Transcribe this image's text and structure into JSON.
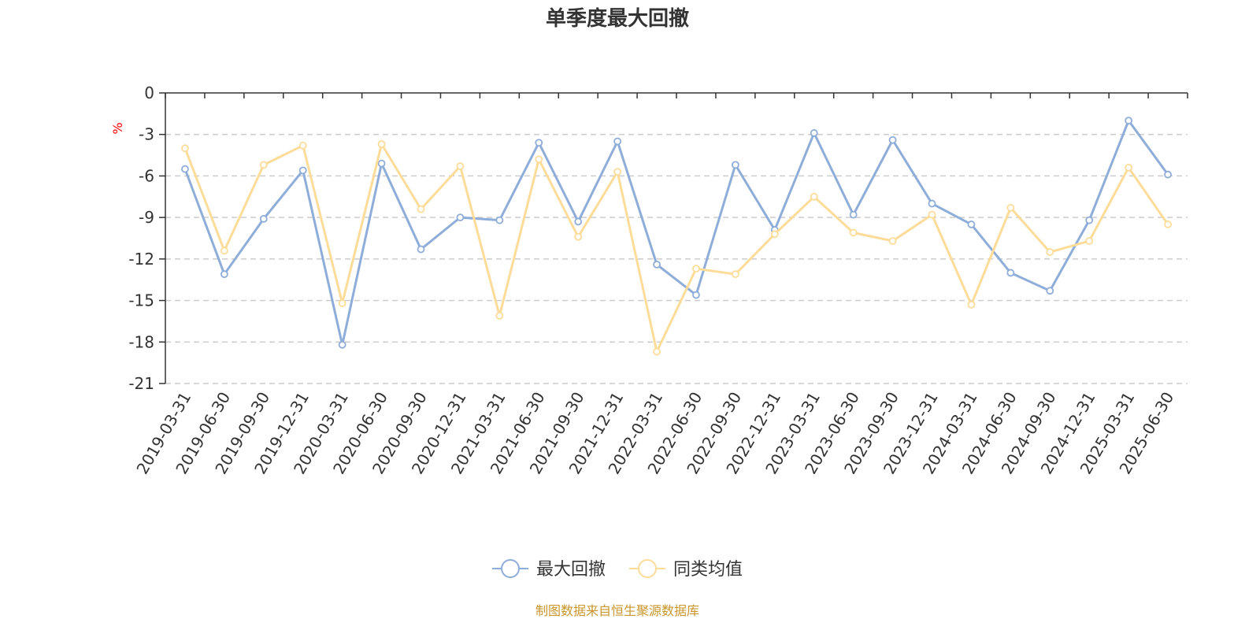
{
  "chart_data": {
    "type": "line",
    "title": "单季度最大回撤",
    "ylabel": "%",
    "ylim": [
      -21,
      0
    ],
    "yticks": [
      0,
      -3,
      -6,
      -9,
      -12,
      -15,
      -18,
      -21
    ],
    "grid": true,
    "legend_position": "bottom",
    "x": [
      "2019-03-31",
      "2019-06-30",
      "2019-09-30",
      "2019-12-31",
      "2020-03-31",
      "2020-06-30",
      "2020-09-30",
      "2020-12-31",
      "2021-03-31",
      "2021-06-30",
      "2021-09-30",
      "2021-12-31",
      "2022-03-31",
      "2022-06-30",
      "2022-09-30",
      "2022-12-31",
      "2023-03-31",
      "2023-06-30",
      "2023-09-30",
      "2023-12-31",
      "2024-03-31",
      "2024-06-30",
      "2024-09-30",
      "2024-12-31",
      "2025-03-31",
      "2025-06-30"
    ],
    "series": [
      {
        "name": "最大回撤",
        "color": "#8eadd9",
        "values": [
          -5.5,
          -13.1,
          -9.1,
          -5.6,
          -18.2,
          -5.1,
          -11.3,
          -9.0,
          -9.2,
          -3.6,
          -9.3,
          -3.5,
          -12.4,
          -14.6,
          -5.2,
          -9.9,
          -2.9,
          -8.8,
          -3.4,
          -8.0,
          -9.5,
          -13.0,
          -14.3,
          -9.2,
          -2.0,
          -5.9
        ]
      },
      {
        "name": "同类均值",
        "color": "#fcdc98",
        "values": [
          -4.0,
          -11.4,
          -5.2,
          -3.8,
          -15.2,
          -3.7,
          -8.4,
          -5.3,
          -16.1,
          -4.8,
          -10.4,
          -5.7,
          -18.7,
          -12.7,
          -13.1,
          -10.2,
          -7.5,
          -10.1,
          -10.7,
          -8.8,
          -15.3,
          -8.3,
          -11.5,
          -10.7,
          -5.4,
          -9.5
        ]
      }
    ]
  },
  "footer": {
    "source": "制图数据来自恒生聚源数据库"
  }
}
